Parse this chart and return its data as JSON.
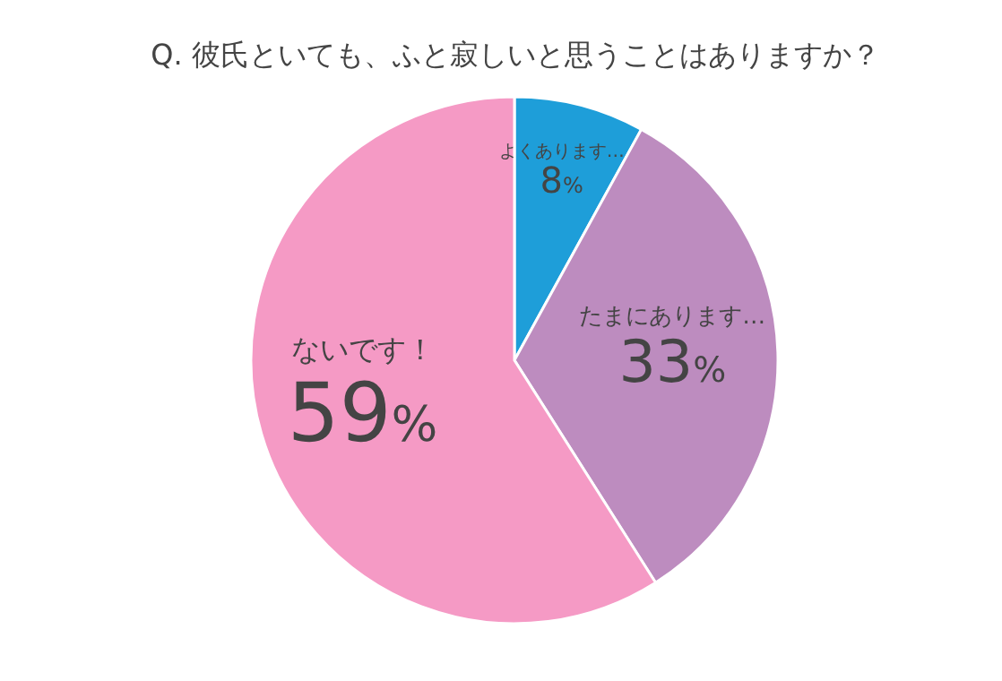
{
  "chart_data": {
    "type": "pie",
    "title": "Q. 彼氏といても、ふと寂しいと思うことはありますか？",
    "categories": [
      "よくあります…",
      "たまにあります…",
      "ないです！"
    ],
    "values": [
      8,
      33,
      59
    ],
    "value_labels": [
      "8%",
      "33%",
      "59%"
    ],
    "colors": [
      "#1e9ed9",
      "#bd8cbf",
      "#f59ac5"
    ]
  }
}
